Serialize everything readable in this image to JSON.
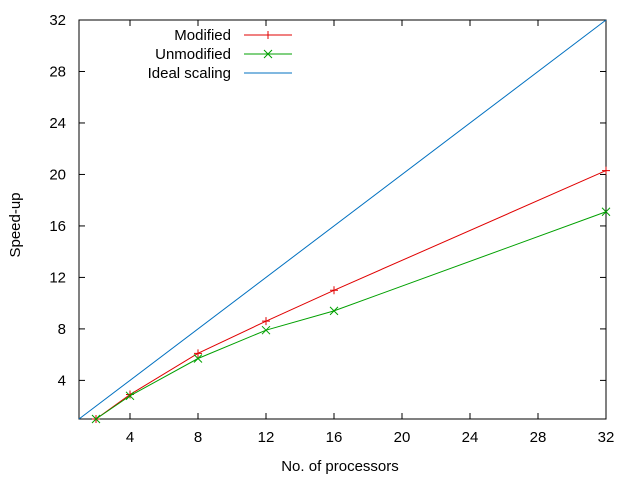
{
  "chart_data": {
    "type": "line",
    "xlabel": "No. of processors",
    "ylabel": "Speed-up",
    "xlim": [
      1,
      32
    ],
    "ylim": [
      1,
      32
    ],
    "x_ticks": [
      4,
      8,
      12,
      16,
      20,
      24,
      28,
      32
    ],
    "y_ticks": [
      4,
      8,
      12,
      16,
      20,
      24,
      28,
      32
    ],
    "grid": false,
    "legend_position": "top-left",
    "series": [
      {
        "name": "Modified",
        "color": "#e00000",
        "marker": "plus",
        "x": [
          2,
          4,
          8,
          12,
          16,
          32
        ],
        "y": [
          1,
          2.9,
          6.1,
          8.6,
          11.0,
          20.3
        ]
      },
      {
        "name": "Unmodified",
        "color": "#00a000",
        "marker": "cross",
        "x": [
          2,
          4,
          8,
          12,
          16,
          32
        ],
        "y": [
          1,
          2.8,
          5.7,
          7.9,
          9.4,
          17.1
        ]
      },
      {
        "name": "Ideal scaling",
        "color": "#0070c0",
        "marker": "none",
        "x": [
          1,
          32
        ],
        "y": [
          1,
          32
        ]
      }
    ]
  }
}
